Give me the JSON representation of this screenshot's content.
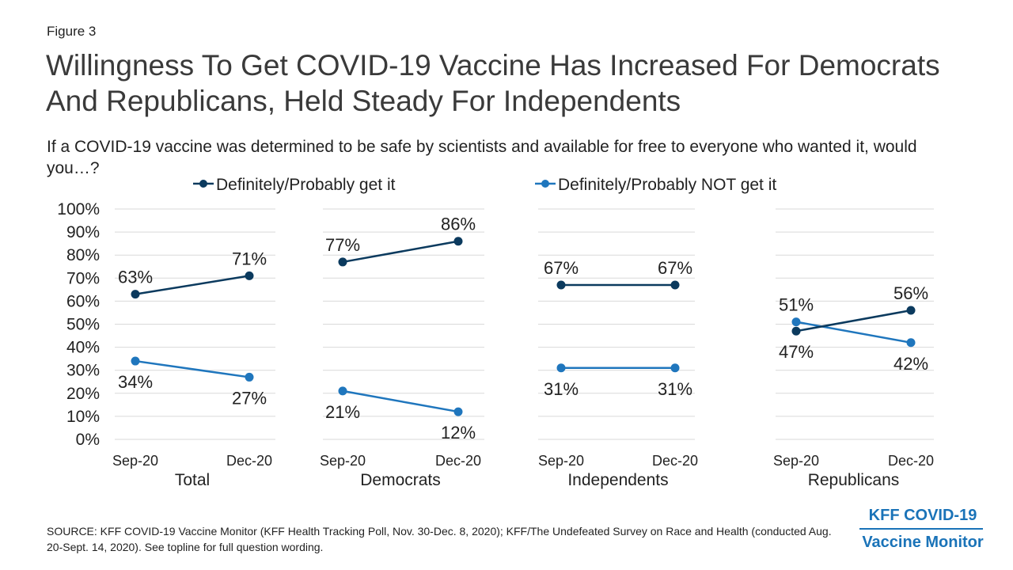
{
  "figure_label": "Figure 3",
  "title": "Willingness To Get COVID-19 Vaccine Has Increased For Democrats And Republicans, Held Steady For Independents",
  "subtitle": "If a COVID-19 vaccine was determined to be safe by scientists and available for free to everyone who wanted it, would you…?",
  "source": "SOURCE: KFF COVID-19 Vaccine Monitor (KFF Health Tracking Poll, Nov. 30-Dec. 8, 2020); KFF/The Undefeated Survey on Race and Health (conducted Aug. 20-Sept. 14, 2020). See topline for full question wording.",
  "logo": {
    "line1": "KFF COVID-19",
    "line2": "Vaccine Monitor"
  },
  "colors": {
    "get": "#0b3a5e",
    "not_get": "#1f76bd",
    "grid": "#d9d9d9",
    "text": "#222222"
  },
  "chart_data": {
    "type": "line",
    "legend_position": "top",
    "grid": true,
    "ylim": [
      0,
      100
    ],
    "y_ticks": [
      "0%",
      "10%",
      "20%",
      "30%",
      "40%",
      "50%",
      "60%",
      "70%",
      "80%",
      "90%",
      "100%"
    ],
    "categories": [
      "Sep-20",
      "Dec-20"
    ],
    "series_names": [
      "Definitely/Probably get it",
      "Definitely/Probably NOT get it"
    ],
    "panels": [
      {
        "name": "Total",
        "get": [
          63,
          71
        ],
        "not_get": [
          34,
          27
        ],
        "get_labels": [
          "63%",
          "71%"
        ],
        "not_get_labels": [
          "34%",
          "27%"
        ]
      },
      {
        "name": "Democrats",
        "get": [
          77,
          86
        ],
        "not_get": [
          21,
          12
        ],
        "get_labels": [
          "77%",
          "86%"
        ],
        "not_get_labels": [
          "21%",
          "12%"
        ]
      },
      {
        "name": "Independents",
        "get": [
          67,
          67
        ],
        "not_get": [
          31,
          31
        ],
        "get_labels": [
          "67%",
          "67%"
        ],
        "not_get_labels": [
          "31%",
          "31%"
        ]
      },
      {
        "name": "Republicans",
        "get": [
          47,
          56
        ],
        "not_get": [
          51,
          42
        ],
        "get_labels": [
          "47%",
          "56%"
        ],
        "not_get_labels": [
          "51%",
          "42%"
        ]
      }
    ]
  }
}
